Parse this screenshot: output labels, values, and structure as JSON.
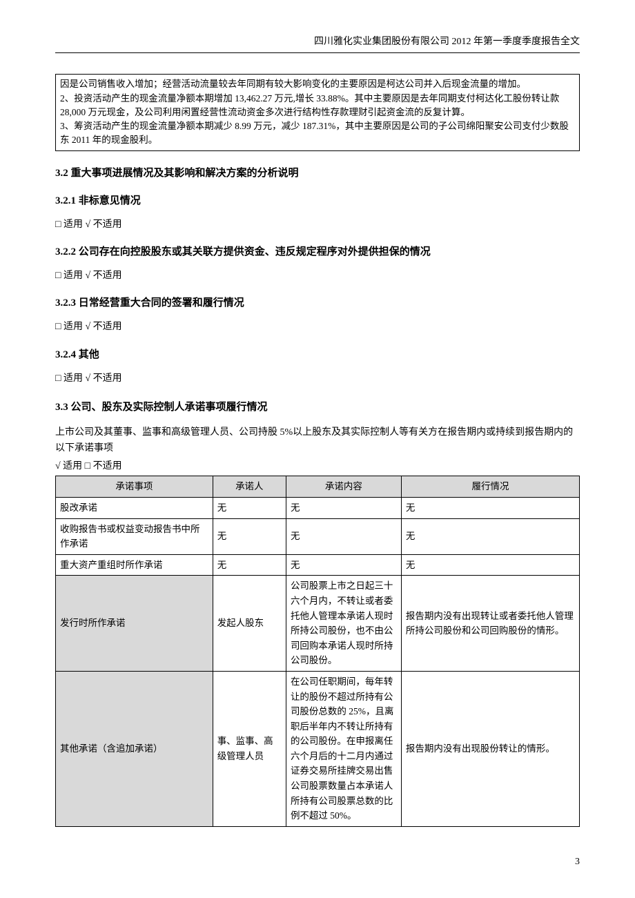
{
  "header": "四川雅化实业集团股份有限公司 2012 年第一季度季度报告全文",
  "box": {
    "line1": "因是公司销售收入增加；经营活动流量较去年同期有较大影响变化的主要原因是柯达公司并入后现金流量的增加。",
    "line2": "2、投资活动产生的现金流量净额本期增加 13,462.27 万元,增长 33.88%。其中主要原因是去年同期支付柯达化工股份转让款28,000 万元现金，及公司利用闲置经营性流动资金多次进行结构性存款理财引起资金流的反复计算。",
    "line3": "3、筹资活动产生的现金流量净额本期减少 8.99 万元，减少 187.31%，其中主要原因是公司的子公司绵阳聚安公司支付少数股东 2011 年的现金股利。"
  },
  "s32": "3.2 重大事项进展情况及其影响和解决方案的分析说明",
  "s321": "3.2.1 非标意见情况",
  "s322": "3.2.2 公司存在向控股股东或其关联方提供资金、违反规定程序对外提供担保的情况",
  "s323": "3.2.3 日常经营重大合同的签署和履行情况",
  "s324": "3.2.4 其他",
  "apply_no": "□ 适用 √ 不适用",
  "s33": "3.3 公司、股东及实际控制人承诺事项履行情况",
  "s33_para": "上市公司及其董事、监事和高级管理人员、公司持股 5%以上股东及其实际控制人等有关方在报告期内或持续到报告期内的以下承诺事项",
  "apply_yes": "√ 适用 □ 不适用",
  "table": {
    "headers": [
      "承诺事项",
      "承诺人",
      "承诺内容",
      "履行情况"
    ],
    "rows": [
      {
        "c1": "股改承诺",
        "c2": "无",
        "c3": "无",
        "c4": "无",
        "shaded": false
      },
      {
        "c1": "收购报告书或权益变动报告书中所作承诺",
        "c2": "无",
        "c3": "无",
        "c4": "无",
        "shaded": false
      },
      {
        "c1": "重大资产重组时所作承诺",
        "c2": "无",
        "c3": "无",
        "c4": "无",
        "shaded": false
      },
      {
        "c1": "发行时所作承诺",
        "c2": "发起人股东",
        "c3": "公司股票上市之日起三十六个月内，不转让或者委托他人管理本承诺人现时所持公司股份，也不由公司回购本承诺人现时所持公司股份。",
        "c4": "报告期内没有出现转让或者委托他人管理所持公司股份和公司回购股份的情形。",
        "shaded": true
      },
      {
        "c1": "其他承诺（含追加承诺）",
        "c2": "事、监事、高级管理人员",
        "c3": "在公司任职期间，每年转让的股份不超过所持有公司股份总数的 25%，且离职后半年内不转让所持有的公司股份。在申报离任六个月后的十二月内通过证券交易所挂牌交易出售公司股票数量占本承诺人所持有公司股票总数的比例不超过 50%。",
        "c4": "报告期内没有出现股份转让的情形。",
        "shaded": true
      }
    ]
  },
  "page_number": "3"
}
